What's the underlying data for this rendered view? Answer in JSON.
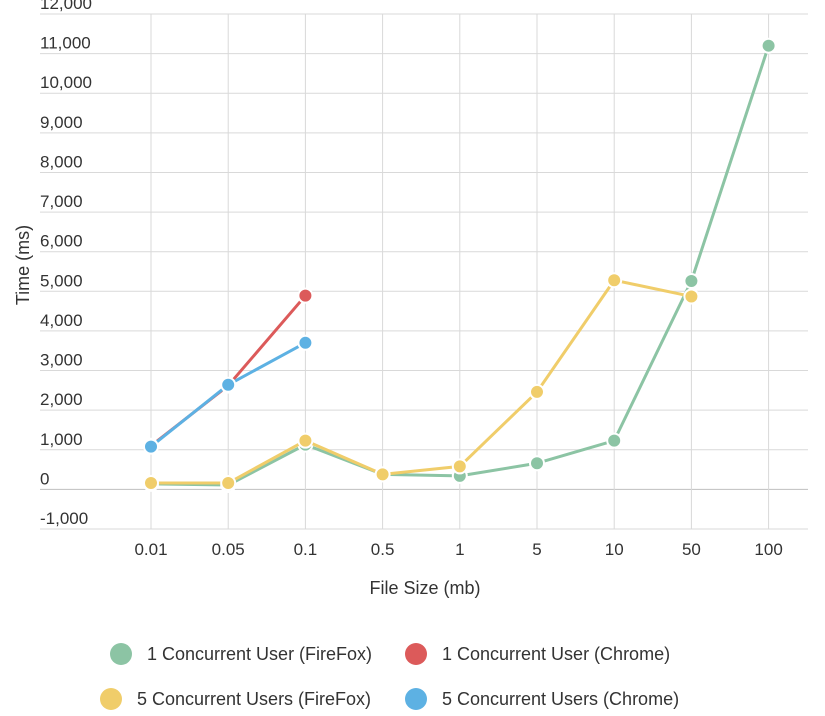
{
  "chart_data": {
    "type": "line",
    "categories": [
      "0.01",
      "0.05",
      "0.1",
      "0.5",
      "1",
      "5",
      "10",
      "50",
      "100"
    ],
    "xlabel": "File Size (mb)",
    "ylabel": "Time (ms)",
    "ylim": [
      -1000,
      12000
    ],
    "yticks": [
      {
        "value": 12000,
        "label": "12,000"
      },
      {
        "value": 11000,
        "label": "11,000"
      },
      {
        "value": 10000,
        "label": "10,000"
      },
      {
        "value": 9000,
        "label": "9,000"
      },
      {
        "value": 8000,
        "label": "8,000"
      },
      {
        "value": 7000,
        "label": "7,000"
      },
      {
        "value": 6000,
        "label": "6,000"
      },
      {
        "value": 5000,
        "label": "5,000"
      },
      {
        "value": 4000,
        "label": "4,000"
      },
      {
        "value": 3000,
        "label": "3,000"
      },
      {
        "value": 2000,
        "label": "2,000"
      },
      {
        "value": 1000,
        "label": "1,000"
      },
      {
        "value": 0,
        "label": "0"
      },
      {
        "value": -1000,
        "label": "-1,000"
      }
    ],
    "grid": true,
    "legend_position": "bottom",
    "series": [
      {
        "name": "1 Concurrent User (FireFox)",
        "color": "#8cc4a4",
        "values": [
          140,
          110,
          1130,
          380,
          340,
          660,
          1230,
          5260,
          11200
        ]
      },
      {
        "name": "5 Concurrent Users (FireFox)",
        "color": "#f0cd6a",
        "values": [
          160,
          160,
          1230,
          380,
          580,
          2460,
          5280,
          4870,
          null
        ]
      },
      {
        "name": "1 Concurrent User (Chrome)",
        "color": "#dc5a5a",
        "values": [
          1100,
          2620,
          4890,
          null,
          null,
          null,
          null,
          null,
          null
        ]
      },
      {
        "name": "5 Concurrent Users (Chrome)",
        "color": "#5db1e3",
        "values": [
          1080,
          2640,
          3700,
          null,
          null,
          null,
          null,
          null,
          null
        ]
      }
    ]
  },
  "legend": {
    "row1": [
      {
        "label": "1 Concurrent User (FireFox)",
        "color": "#8cc4a4"
      },
      {
        "label": "1 Concurrent User (Chrome)",
        "color": "#dc5a5a"
      }
    ],
    "row2": [
      {
        "label": "5 Concurrent Users (FireFox)",
        "color": "#f0cd6a"
      },
      {
        "label": "5 Concurrent Users (Chrome)",
        "color": "#5db1e3"
      }
    ]
  },
  "colors": {
    "grid": "#d9d9d9",
    "axis": "#444444",
    "text": "#333333"
  }
}
